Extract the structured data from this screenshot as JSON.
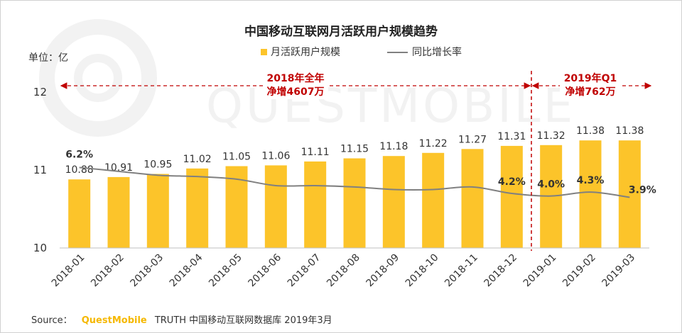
{
  "title": "中国移动互联网月活跃用户规模趋势",
  "unit_label": "单位：亿",
  "legend": {
    "bar_label": "月活跃用户规模",
    "line_label": "同比增长率"
  },
  "annotations": [
    {
      "line1": "2018年全年",
      "line2": "净增4607万"
    },
    {
      "line1": "2019年Q1",
      "line2": "净增762万"
    }
  ],
  "source": {
    "prefix": "Source：",
    "brand": "QuestMobile",
    "rest": "TRUTH 中国移动互联网数据库 2019年3月"
  },
  "watermark": "QUESTMOBILE",
  "colors": {
    "bar": "#fcc42a",
    "line": "#808080",
    "annotation": "#c00000",
    "brand": "#f5b800"
  },
  "chart_data": {
    "type": "bar",
    "categories": [
      "2018-01",
      "2018-02",
      "2018-03",
      "2018-04",
      "2018-05",
      "2018-06",
      "2018-07",
      "2018-08",
      "2018-09",
      "2018-10",
      "2018-11",
      "2018-12",
      "2019-01",
      "2019-02",
      "2019-03"
    ],
    "series": [
      {
        "name": "月活跃用户规模",
        "type": "bar",
        "values": [
          10.88,
          10.91,
          10.95,
          11.02,
          11.05,
          11.06,
          11.11,
          11.15,
          11.18,
          11.22,
          11.27,
          11.31,
          11.32,
          11.38,
          11.38
        ],
        "labels": [
          "10.88",
          "10.91",
          "10.95",
          "11.02",
          "11.05",
          "11.06",
          "11.11",
          "11.15",
          "11.18",
          "11.22",
          "11.27",
          "11.31",
          "11.32",
          "11.38",
          "11.38"
        ]
      },
      {
        "name": "同比增长率",
        "type": "line",
        "values": [
          6.2,
          5.9,
          5.6,
          5.5,
          5.3,
          4.8,
          4.8,
          4.7,
          4.5,
          4.5,
          4.7,
          4.2,
          4.0,
          4.3,
          3.9
        ],
        "point_labels": [
          {
            "index": 0,
            "text": "6.2%"
          },
          {
            "index": 11,
            "text": "4.2%"
          },
          {
            "index": 12,
            "text": "4.0%"
          },
          {
            "index": 13,
            "text": "4.3%"
          },
          {
            "index": 14,
            "text": "3.9%"
          }
        ]
      }
    ],
    "y_ticks": [
      "10",
      "11",
      "12"
    ],
    "ylim": [
      10,
      12
    ],
    "y2lim": [
      0,
      12
    ],
    "divider_after_index": 11,
    "legend_position": "top",
    "grid": false
  }
}
